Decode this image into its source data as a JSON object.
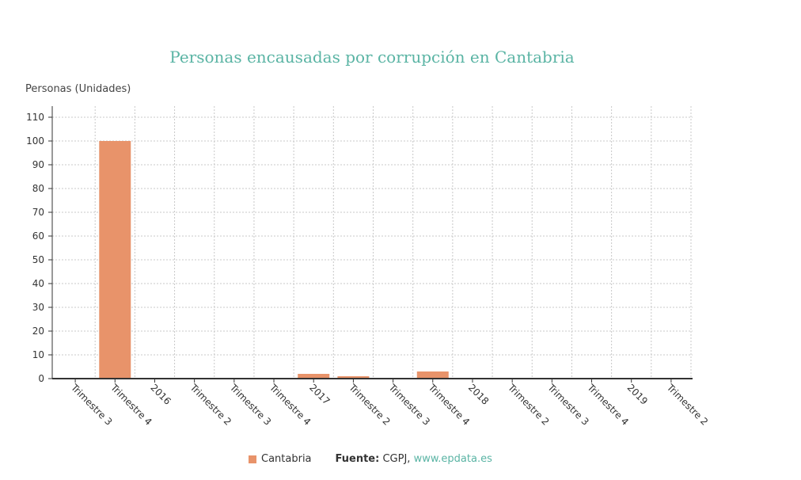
{
  "chart_data": {
    "type": "bar",
    "title": "Personas encausadas por corrupción en Cantabria",
    "ylabel": "Personas (Unidades)",
    "xlabel": "",
    "categories": [
      "Trimestre 3",
      "Trimestre 4",
      "2016",
      "Trimestre 2",
      "Trimestre 3",
      "Trimestre 4",
      "2017",
      "Trimestre 2",
      "Trimestre 3",
      "Trimestre 4",
      "2018",
      "Trimestre 2",
      "Trimestre 3",
      "Trimestre 4",
      "2019",
      "Trimestre 2"
    ],
    "series": [
      {
        "name": "Cantabria",
        "values": [
          0,
          100,
          0,
          0,
          0,
          0,
          2,
          1,
          0,
          3,
          0,
          0,
          0,
          0,
          0,
          0
        ],
        "color": "#e8936a"
      }
    ],
    "ylim": [
      0,
      110
    ],
    "yticks": [
      0,
      10,
      20,
      30,
      40,
      50,
      60,
      70,
      80,
      90,
      100,
      110
    ],
    "grid": true,
    "legend": "bottom"
  },
  "source": {
    "label": "Fuente:",
    "text": "CGPJ,",
    "link": "www.epdata.es"
  }
}
